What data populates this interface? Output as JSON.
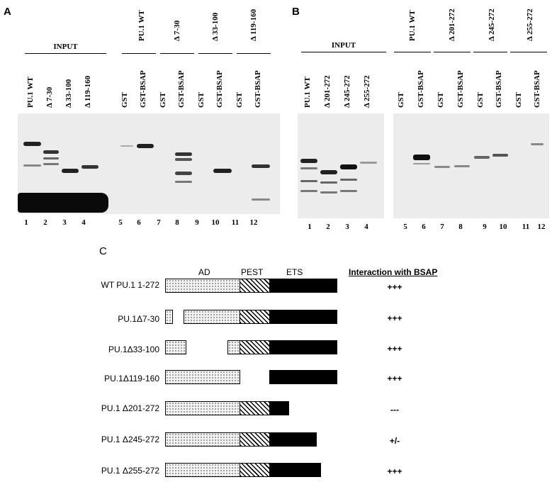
{
  "panel_a": {
    "letter": "A",
    "groups": [
      "INPUT",
      "PU.1 WT",
      "Δ 7-30",
      "Δ 33-100",
      "Δ 119-160"
    ],
    "lane_headers": [
      "PU.1 WT",
      "Δ 7-30",
      "Δ 33-100",
      "Δ 119-160",
      "GST",
      "GST-BSAP",
      "GST",
      "GST-BSAP",
      "GST",
      "GST-BSAP",
      "GST",
      "GST-BSAP"
    ],
    "lane_numbers": [
      "1",
      "2",
      "3",
      "4",
      "5",
      "6",
      "7",
      "8",
      "9",
      "10",
      "11",
      "12"
    ]
  },
  "panel_b": {
    "letter": "B",
    "groups": [
      "INPUT",
      "PU.1 WT",
      "Δ 201-272",
      "Δ 245-272",
      "Δ 255-272"
    ],
    "lane_headers": [
      "PU.1 WT",
      "Δ 201-272",
      "Δ 245-272",
      "Δ 255-272",
      "GST",
      "GST-BSAP",
      "GST",
      "GST-BSAP",
      "GST",
      "GST-BSAP",
      "GST",
      "GST-BSAP"
    ],
    "lane_numbers": [
      "1",
      "2",
      "3",
      "4",
      "5",
      "6",
      "7",
      "8",
      "9",
      "10",
      "11",
      "12"
    ]
  },
  "panel_c": {
    "letter": "C",
    "domain_labels": [
      "AD",
      "PEST",
      "ETS"
    ],
    "interaction_header": "Interaction with BSAP",
    "constructs": [
      {
        "label": "WT PU.1 1-272",
        "interaction": "+++"
      },
      {
        "label": "PU.1Δ7-30",
        "interaction": "+++"
      },
      {
        "label": "PU.1Δ33-100",
        "interaction": "+++"
      },
      {
        "label": "PU.1Δ119-160",
        "interaction": "+++"
      },
      {
        "label": "PU.1 Δ201-272",
        "interaction": "---"
      },
      {
        "label": "PU.1 Δ245-272",
        "interaction": "+/-"
      },
      {
        "label": "PU.1 Δ255-272",
        "interaction": "+++"
      }
    ]
  }
}
